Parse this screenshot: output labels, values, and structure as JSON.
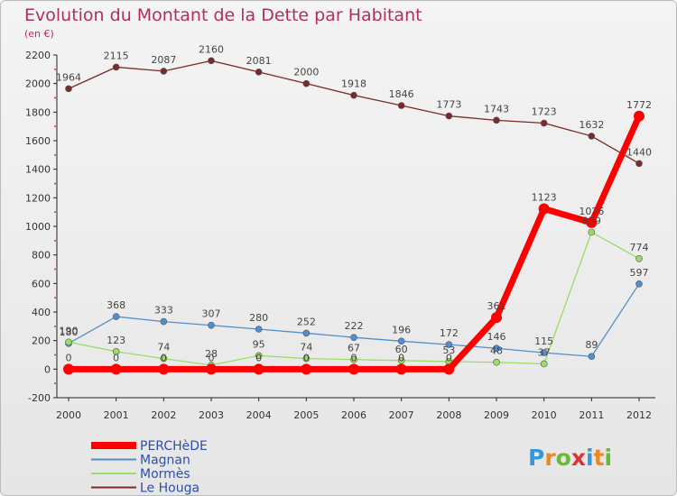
{
  "chart_data": {
    "type": "line",
    "title": "Evolution du Montant de la Dette par Habitant",
    "subtitle": "(en €)",
    "x": [
      "2000",
      "2001",
      "2002",
      "2003",
      "2004",
      "2005",
      "2006",
      "2007",
      "2008",
      "2009",
      "2010",
      "2011",
      "2012"
    ],
    "ylim": [
      -200,
      2200
    ],
    "yticks": [
      -200,
      0,
      200,
      400,
      600,
      800,
      1000,
      1200,
      1400,
      1600,
      1800,
      2000,
      2200
    ],
    "grid": false,
    "legend_position": "bottom-left",
    "series": [
      {
        "name": "PERCHèDE",
        "color": "#ff0000",
        "values": [
          0,
          0,
          0,
          0,
          0,
          0,
          0,
          0,
          0,
          361,
          1123,
          1026,
          1772
        ]
      },
      {
        "name": "Magnan",
        "color": "#4f8fcf",
        "values": [
          180,
          368,
          333,
          307,
          280,
          252,
          222,
          196,
          172,
          146,
          115,
          89,
          597
        ]
      },
      {
        "name": "Mormès",
        "color": "#99dd66",
        "values": [
          190,
          123,
          74,
          28,
          95,
          74,
          67,
          60,
          53,
          48,
          37,
          959,
          774
        ]
      },
      {
        "name": "Le Houga",
        "color": "#7a2a2a",
        "values": [
          1964,
          2115,
          2087,
          2160,
          2081,
          2000,
          1918,
          1846,
          1773,
          1743,
          1723,
          1632,
          1440
        ]
      }
    ]
  },
  "logo": {
    "text": "Proxiti"
  }
}
